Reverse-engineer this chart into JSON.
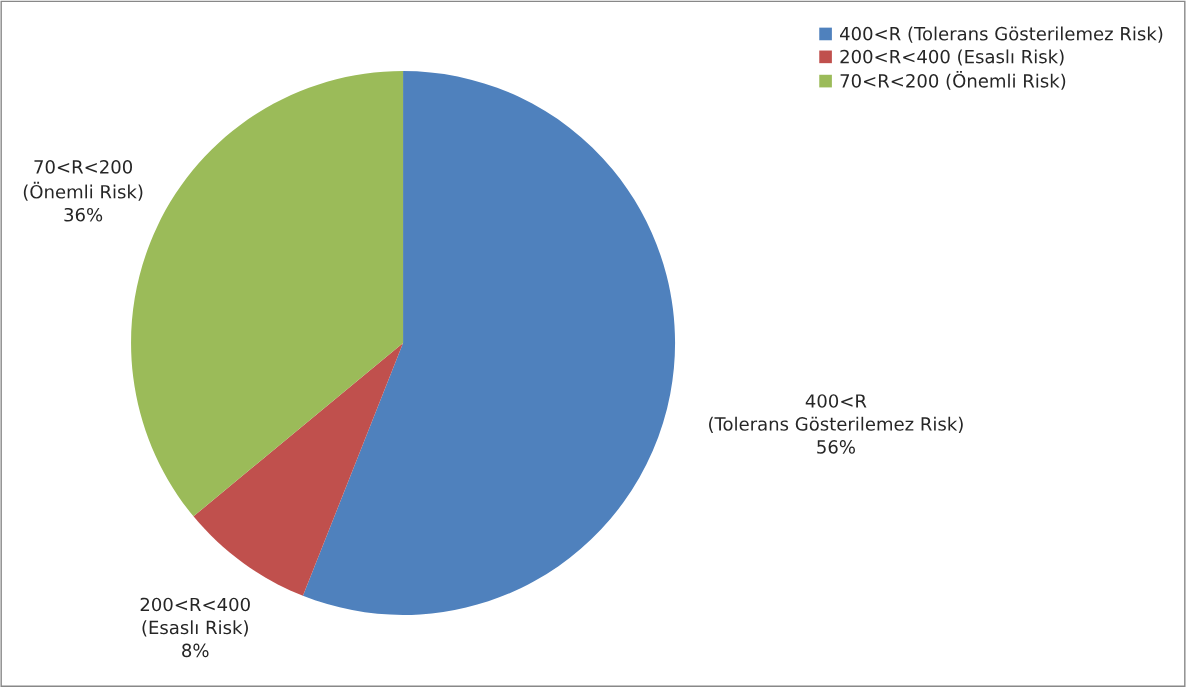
{
  "chart_data": {
    "type": "pie",
    "categories": [
      "400<R (Tolerans Gösterilemez Risk)",
      "200<R<400 (Esaslı Risk)",
      "70<R<200 (Önemli Risk)"
    ],
    "values": [
      56,
      8,
      36
    ],
    "colors": [
      "#4f81bd",
      "#c0504d",
      "#9bbb59"
    ],
    "data_labels": true,
    "value_labels": [
      "56%",
      "8%",
      "36%"
    ],
    "legend": "top right"
  }
}
